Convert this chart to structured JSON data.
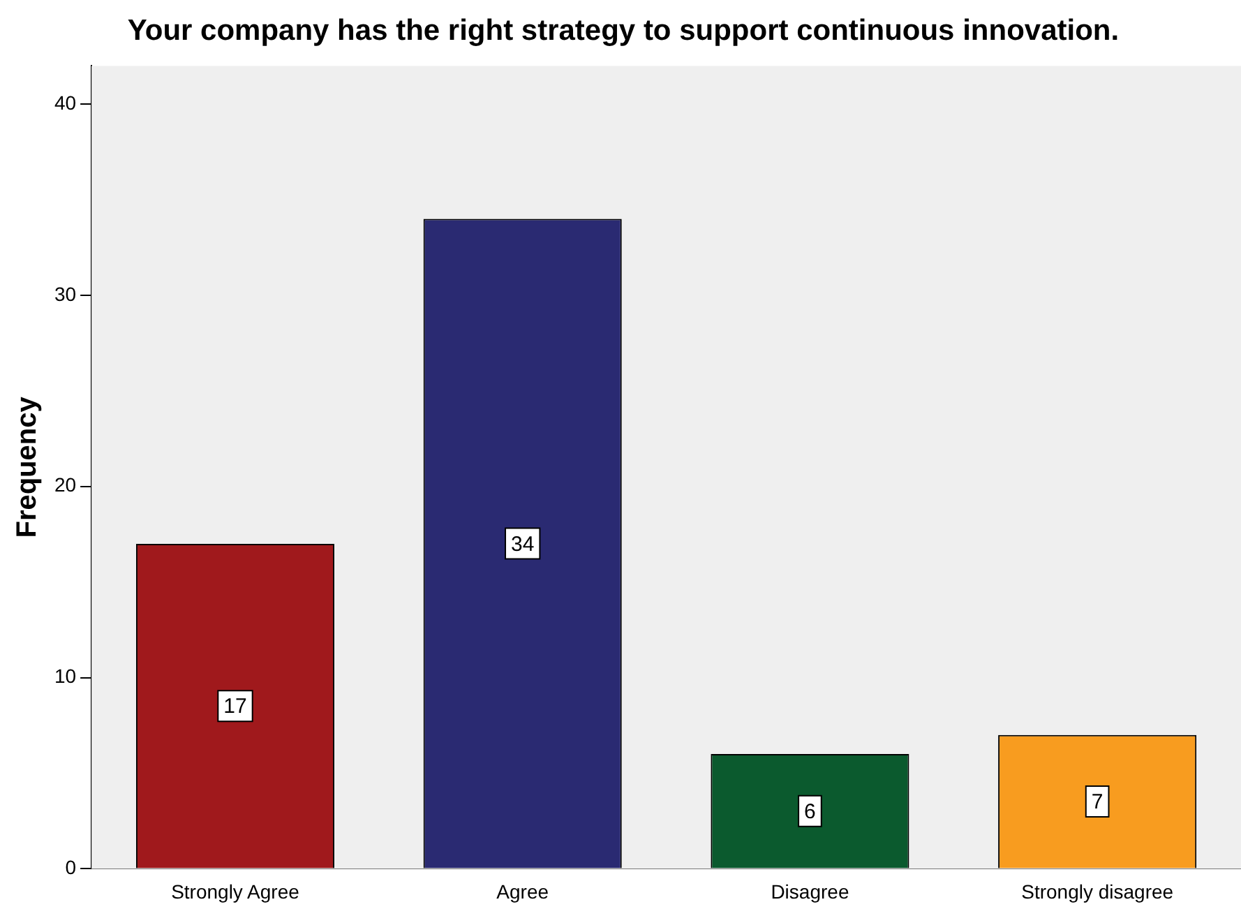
{
  "chart_data": {
    "type": "bar",
    "title": "Your company has the right strategy to support continuous innovation.",
    "ylabel": "Frequency",
    "categories": [
      "Strongly Agree",
      "Agree",
      "Disagree",
      "Strongly disagree"
    ],
    "values": [
      17,
      34,
      6,
      7
    ],
    "colors": [
      "#a0191c",
      "#2a2a72",
      "#0b5a2e",
      "#f89c1f"
    ],
    "ylim": [
      0,
      42
    ],
    "yticks": [
      0,
      10,
      20,
      30,
      40
    ],
    "grid": false,
    "legend": false,
    "data_labels": true
  }
}
